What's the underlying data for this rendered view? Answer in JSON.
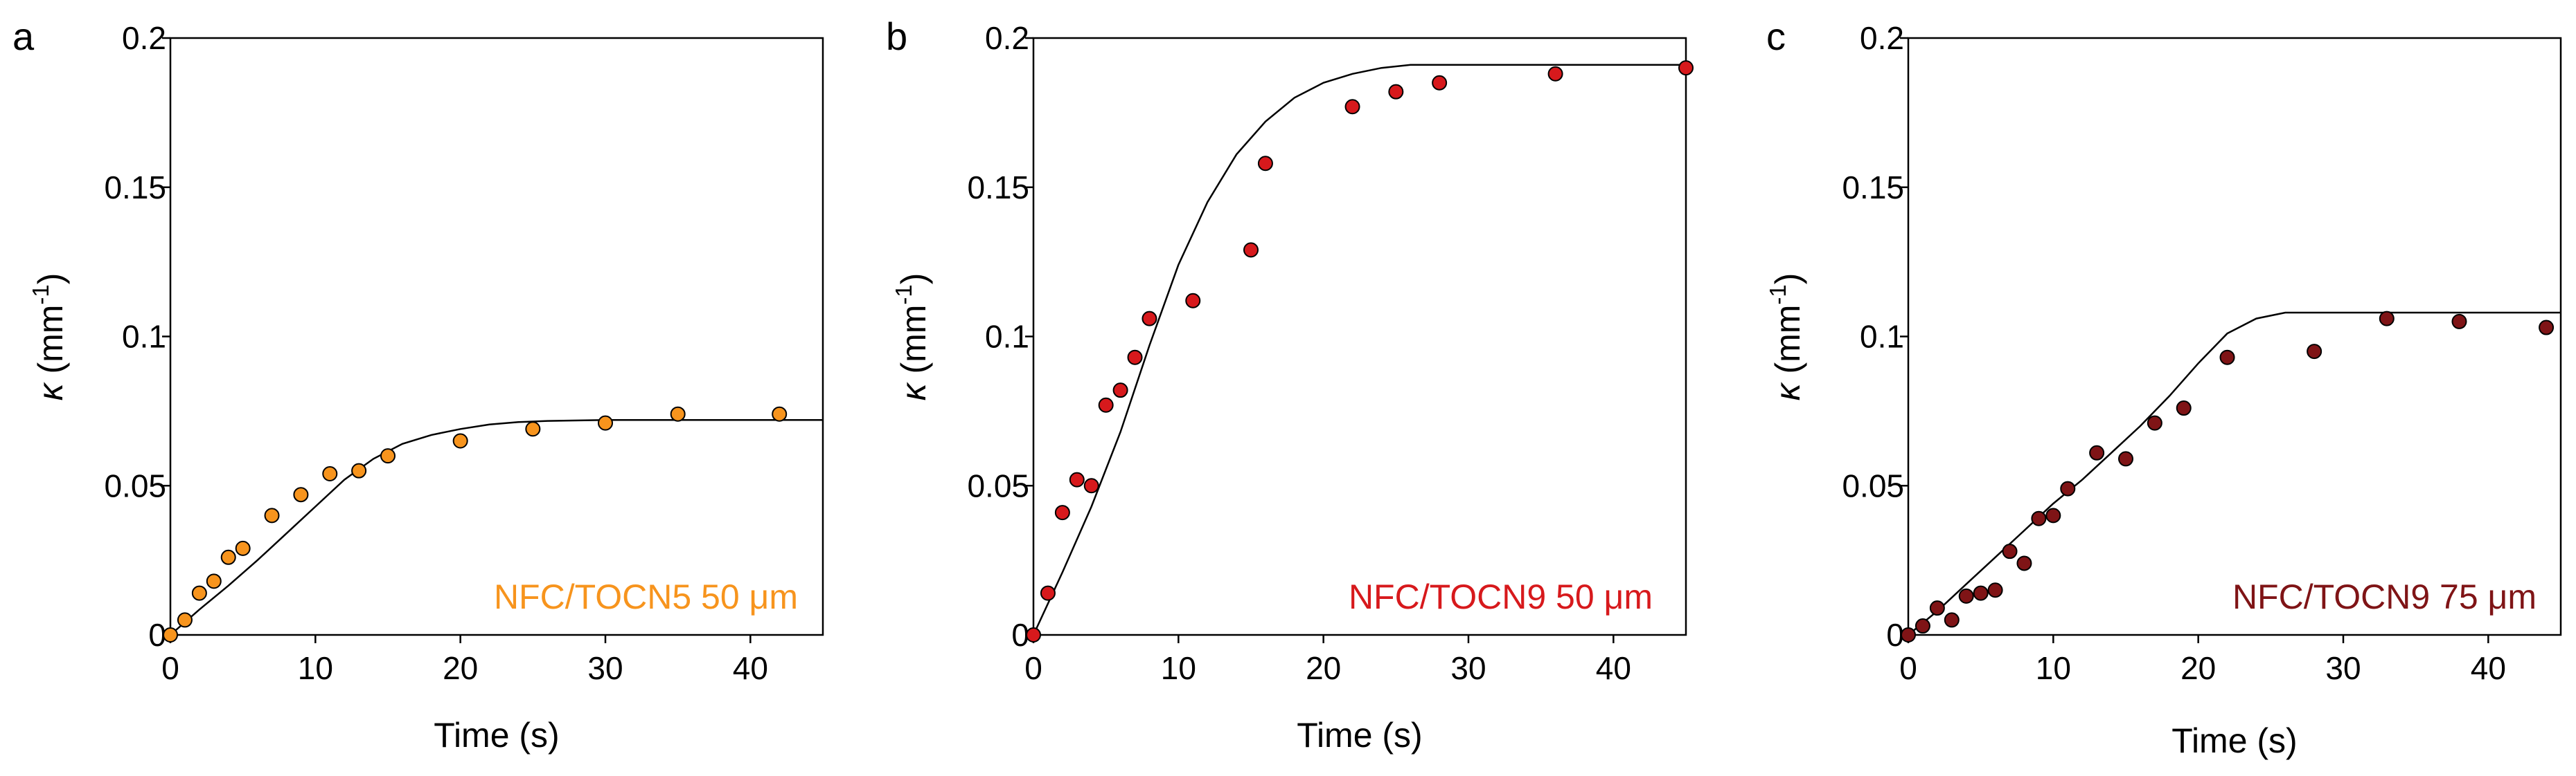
{
  "chart_data": [
    {
      "type": "scatter",
      "panel": "a",
      "xlabel": "Time (s)",
      "ylabel": {
        "symbol": "κ",
        "unit_base": " (mm",
        "unit_sup": "-1",
        "unit_end": ")"
      },
      "xlim": [
        0,
        45
      ],
      "ylim": [
        0,
        0.2
      ],
      "xticks": [
        0,
        10,
        20,
        30,
        40
      ],
      "yticks": [
        0,
        0.05,
        0.1,
        0.15,
        0.2
      ],
      "ytick_labels": [
        "0",
        "0.05",
        "0.1",
        "0.15",
        "0.2"
      ],
      "label": "NFC/TOCN5 50 μm",
      "color": "#F7941D",
      "series": [
        {
          "name": "measured",
          "x": [
            0,
            1,
            2,
            3,
            4,
            5,
            7,
            9,
            11,
            13,
            15,
            20,
            25,
            30,
            35,
            42
          ],
          "y": [
            0,
            0.005,
            0.014,
            0.018,
            0.026,
            0.029,
            0.04,
            0.047,
            0.054,
            0.055,
            0.06,
            0.065,
            0.069,
            0.071,
            0.074,
            0.074
          ]
        },
        {
          "name": "fit",
          "x": [
            0,
            2,
            4,
            6,
            8,
            10,
            12,
            14,
            16,
            18,
            20,
            22,
            24,
            26,
            30,
            35,
            40,
            45
          ],
          "y": [
            0,
            0.0085,
            0.0165,
            0.025,
            0.034,
            0.043,
            0.052,
            0.059,
            0.064,
            0.067,
            0.069,
            0.0705,
            0.0713,
            0.0717,
            0.072,
            0.072,
            0.072,
            0.072
          ]
        }
      ]
    },
    {
      "type": "scatter",
      "panel": "b",
      "xlabel": "Time (s)",
      "ylabel": {
        "symbol": "κ",
        "unit_base": " (mm",
        "unit_sup": "-1",
        "unit_end": ")"
      },
      "xlim": [
        0,
        45
      ],
      "ylim": [
        0,
        0.2
      ],
      "xticks": [
        0,
        10,
        20,
        30,
        40
      ],
      "yticks": [
        0,
        0.05,
        0.1,
        0.15,
        0.2
      ],
      "ytick_labels": [
        "0",
        "0.05",
        "0.1",
        "0.15",
        "0.2"
      ],
      "label": "NFC/TOCN9 50 μm",
      "color": "#D7191C",
      "series": [
        {
          "name": "measured",
          "x": [
            0,
            1,
            2,
            3,
            4,
            5,
            6,
            7,
            8,
            11,
            15,
            16,
            22,
            25,
            28,
            36,
            45
          ],
          "y": [
            0,
            0.014,
            0.041,
            0.052,
            0.05,
            0.077,
            0.082,
            0.093,
            0.106,
            0.112,
            0.129,
            0.158,
            0.177,
            0.182,
            0.185,
            0.188,
            0.19
          ]
        },
        {
          "name": "fit",
          "x": [
            0,
            2,
            4,
            6,
            8,
            10,
            12,
            14,
            16,
            18,
            20,
            22,
            24,
            26,
            30,
            35,
            40,
            45
          ],
          "y": [
            0,
            0.021,
            0.043,
            0.068,
            0.097,
            0.124,
            0.145,
            0.161,
            0.172,
            0.18,
            0.185,
            0.188,
            0.19,
            0.191,
            0.191,
            0.191,
            0.191,
            0.191
          ]
        }
      ]
    },
    {
      "type": "scatter",
      "panel": "c",
      "xlabel": "Time (s)",
      "ylabel": {
        "symbol": "κ",
        "unit_base": " (mm",
        "unit_sup": "-1",
        "unit_end": ")"
      },
      "xlim": [
        0,
        45
      ],
      "ylim": [
        0,
        0.2
      ],
      "xticks": [
        0,
        10,
        20,
        30,
        40
      ],
      "yticks": [
        0,
        0.05,
        0.1,
        0.15,
        0.2
      ],
      "ytick_labels": [
        "0",
        "0.05",
        "0.1",
        "0.15",
        "0.2"
      ],
      "label": "NFC/TOCN9 75 μm",
      "color": "#7F1416",
      "series": [
        {
          "name": "measured",
          "x": [
            0,
            1,
            2,
            3,
            4,
            5,
            6,
            7,
            8,
            9,
            10,
            11,
            13,
            15,
            17,
            19,
            22,
            28,
            33,
            38,
            44
          ],
          "y": [
            0,
            0.003,
            0.009,
            0.005,
            0.013,
            0.014,
            0.015,
            0.028,
            0.024,
            0.039,
            0.04,
            0.049,
            0.061,
            0.059,
            0.071,
            0.076,
            0.093,
            0.095,
            0.106,
            0.105,
            0.103
          ]
        },
        {
          "name": "fit",
          "x": [
            0,
            2,
            4,
            6,
            8,
            10,
            12,
            14,
            16,
            18,
            20,
            22,
            24,
            26,
            30,
            35,
            40,
            45
          ],
          "y": [
            0,
            0.008,
            0.017,
            0.026,
            0.035,
            0.044,
            0.052,
            0.061,
            0.07,
            0.08,
            0.091,
            0.101,
            0.106,
            0.108,
            0.108,
            0.108,
            0.108,
            0.108
          ]
        }
      ]
    }
  ]
}
